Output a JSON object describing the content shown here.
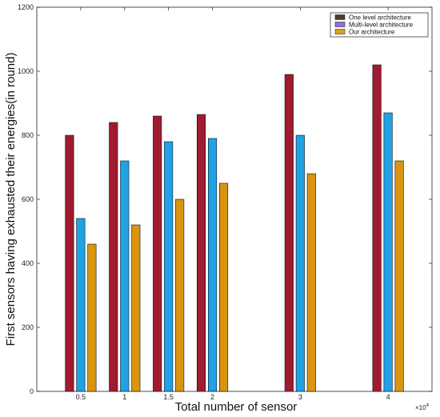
{
  "chart_data": {
    "type": "bar",
    "title": "",
    "xlabel": "Total number of sensor",
    "ylabel": "First sensors having exhausted their energies(in round)",
    "x_multiplier_label": "×10",
    "x_multiplier_exponent": "4",
    "x": [
      0.5,
      1,
      1.5,
      2,
      3,
      4
    ],
    "x_tick_labels": [
      "0.5",
      "1",
      "1.5",
      "2",
      "3",
      "4"
    ],
    "xlim": [
      0,
      4.5
    ],
    "ylim": [
      0,
      1200
    ],
    "y_ticks": [
      0,
      200,
      400,
      600,
      800,
      1000,
      1200
    ],
    "grid": false,
    "legend_position": "top-right",
    "series": [
      {
        "name": "One level architecture",
        "legend_color": "#4a3f2e",
        "bar_color": "#a01b30",
        "values": [
          800,
          840,
          860,
          865,
          990,
          1020
        ]
      },
      {
        "name": "Multi-level architecture",
        "legend_color": "#8f6fd8",
        "bar_color": "#1fa2e6",
        "values": [
          540,
          720,
          780,
          790,
          800,
          870
        ]
      },
      {
        "name": "Our architecture",
        "legend_color": "#e0a020",
        "bar_color": "#d99410",
        "values": [
          460,
          520,
          600,
          650,
          680,
          720
        ]
      }
    ]
  }
}
